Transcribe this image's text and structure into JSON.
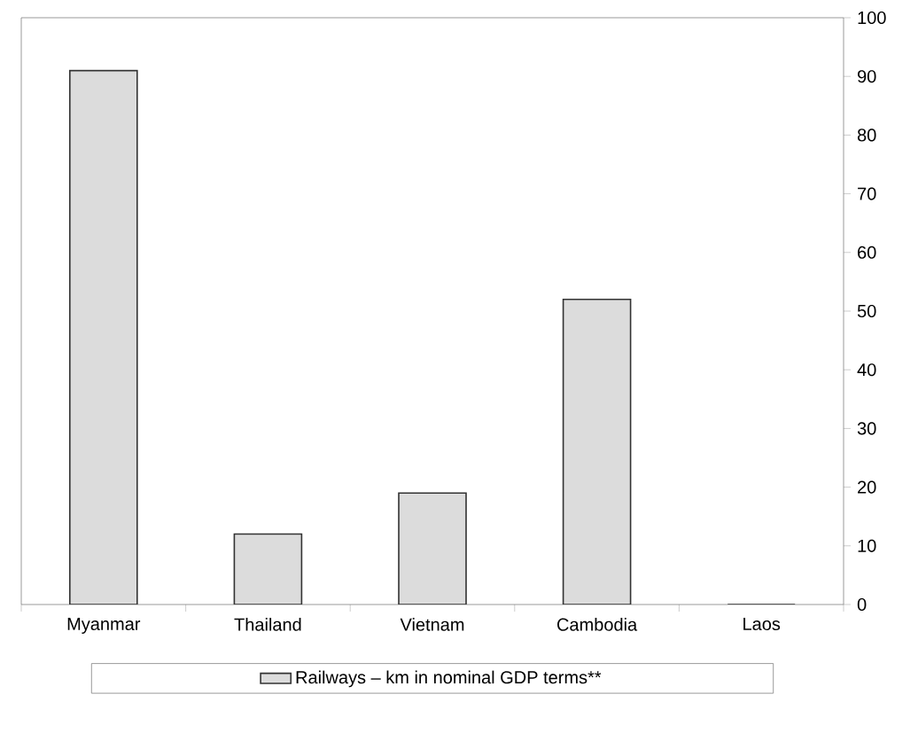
{
  "chart_data": {
    "type": "bar",
    "categories": [
      "Myanmar",
      "Thailand",
      "Vietnam",
      "Cambodia",
      "Laos"
    ],
    "series": [
      {
        "name": "Railways – km in nominal GDP terms**",
        "color": "#dcdcdc",
        "values": [
          91,
          12,
          19,
          52,
          0
        ]
      }
    ],
    "ylim": [
      0,
      100
    ],
    "yticks": [
      0,
      10,
      20,
      30,
      40,
      50,
      60,
      70,
      80,
      90,
      100
    ],
    "grid": false,
    "legend": "bottom"
  }
}
